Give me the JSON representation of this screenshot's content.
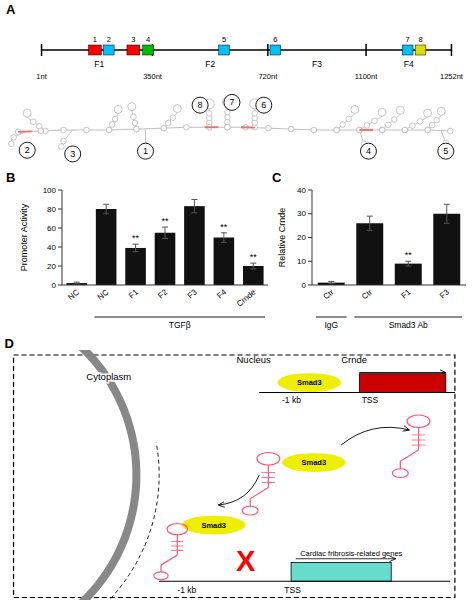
{
  "chart_data": [
    {
      "type": "diagram",
      "title": "A",
      "nt_labels": [
        "1nt",
        "350nt",
        "720nt",
        "1100nt",
        "1252nt"
      ],
      "fragment_labels": [
        "F1",
        "F2",
        "F3",
        "F4"
      ],
      "box_labels": [
        "1",
        "2",
        "3",
        "4",
        "5",
        "6",
        "7",
        "8"
      ],
      "colors": [
        "#FF0000",
        "#00BFFF",
        "#FF0000",
        "#00BB00",
        "#00BFFF",
        "#00BFFF",
        "#00BFFF",
        "#DDDD00"
      ]
    },
    {
      "type": "diagram",
      "annotations": [
        "1",
        "2",
        "3",
        "4",
        "5",
        "6",
        "7",
        "8"
      ]
    },
    {
      "type": "bar",
      "title": "B",
      "categories": [
        "NC",
        "NC",
        "F1",
        "F2",
        "F3",
        "F4",
        "Crnde"
      ],
      "values": [
        2,
        80,
        39,
        55,
        83,
        50,
        20
      ],
      "errors": [
        1,
        5,
        4,
        6,
        7,
        5,
        3
      ],
      "sig": [
        false,
        false,
        true,
        true,
        false,
        true,
        true
      ],
      "sig_label": "**",
      "xlabel": "TGFβ",
      "ylabel": "Promoter Activity",
      "ylim": [
        0,
        100
      ],
      "yticks": [
        0,
        20,
        40,
        60,
        80,
        100
      ],
      "color": "#111111"
    },
    {
      "type": "bar",
      "title": "C",
      "categories": [
        "Ctr",
        "Ctr",
        "F1",
        "F3"
      ],
      "values": [
        1,
        26,
        9,
        30
      ],
      "errors": [
        0.5,
        3,
        1,
        4
      ],
      "sig": [
        false,
        false,
        true,
        false
      ],
      "sig_label": "**",
      "group_labels": [
        "IgG",
        "Smad3 Ab"
      ],
      "ylabel": "Relative Crnde",
      "ylim": [
        0,
        40
      ],
      "yticks": [
        0,
        10,
        20,
        30,
        40
      ],
      "color": "#111111"
    },
    {
      "type": "diagram",
      "title": "D",
      "labels": {
        "cytoplasm": "Cytoplasm",
        "nucleus": "Nucleus",
        "crnde": "Crnde",
        "smad3": "Smad3",
        "minus_1kb": "-1 kb",
        "tss": "TSS",
        "cardiac_genes": "Cardiac fribrosis-related genes",
        "minus_1kb_bottom": "-1 kb",
        "blocked": "X"
      }
    }
  ]
}
